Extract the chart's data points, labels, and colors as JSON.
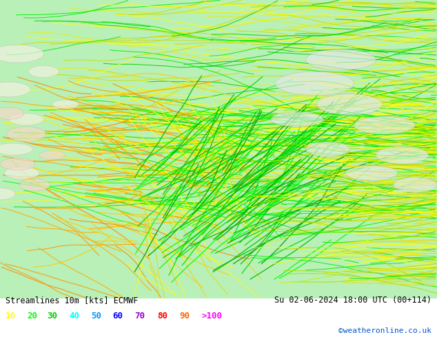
{
  "title_left": "Streamlines 10m [kts] ECMWF",
  "title_right": "Su 02-06-2024 18:00 UTC (00+114)",
  "watermark": "©weatheronline.co.uk",
  "bg_color": "#b8f0b8",
  "legend_items": [
    {
      "label": "10",
      "color": "#ffff00"
    },
    {
      "label": "20",
      "color": "#00ff00"
    },
    {
      "label": "30",
      "color": "#00cc00"
    },
    {
      "label": "40",
      "color": "#00ffff"
    },
    {
      "label": "50",
      "color": "#0099ff"
    },
    {
      "label": "60",
      "color": "#0000ff"
    },
    {
      "label": "70",
      "color": "#9900cc"
    },
    {
      "label": "80",
      "color": "#ff0000"
    },
    {
      "label": "90",
      "color": "#ff6600"
    },
    {
      "label": ">100",
      "color": "#ff00ff"
    }
  ],
  "figsize": [
    6.34,
    4.9
  ],
  "dpi": 100
}
